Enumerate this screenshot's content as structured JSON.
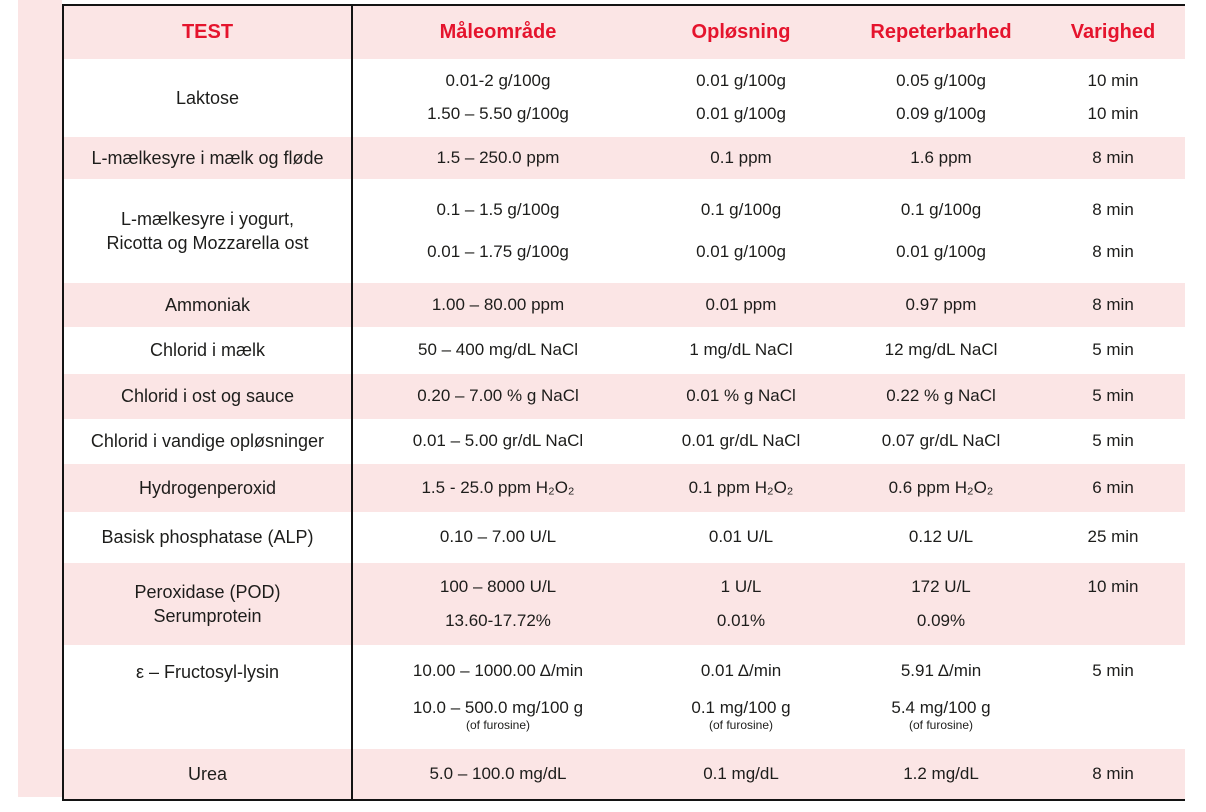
{
  "colors": {
    "accent_red": "#E5142D",
    "band_pink": "#FBE5E5",
    "text_black": "#1D1D1B",
    "rule_black": "#131313"
  },
  "table": {
    "headers": {
      "test": "TEST",
      "range": "Måleområde",
      "resolution": "Opløsning",
      "repeatability": "Repeterbarhed",
      "duration": "Varighed"
    },
    "rows": [
      {
        "test": [
          "Laktose"
        ],
        "lines": [
          {
            "cells": [
              {
                "t": "0.01-2 g/100g"
              },
              {
                "t": "0.01 g/100g"
              },
              {
                "t": "0.05 g/100g"
              },
              {
                "t": "10 min"
              }
            ]
          },
          {
            "cells": [
              {
                "t": "1.50 – 5.50 g/100g"
              },
              {
                "t": "0.01 g/100g"
              },
              {
                "t": "0.09 g/100g"
              },
              {
                "t": "10 min"
              }
            ]
          }
        ]
      },
      {
        "test": [
          "L-mælkesyre i mælk og fløde"
        ],
        "lines": [
          {
            "cells": [
              {
                "t": "1.5 – 250.0 ppm"
              },
              {
                "t": "0.1 ppm"
              },
              {
                "t": "1.6 ppm"
              },
              {
                "t": "8 min"
              }
            ]
          }
        ]
      },
      {
        "test": [
          "L-mælkesyre i yogurt,",
          "Ricotta og Mozzarella ost"
        ],
        "lines": [
          {
            "cells": [
              {
                "t": "0.1 – 1.5 g/100g"
              },
              {
                "t": "0.1 g/100g"
              },
              {
                "t": "0.1 g/100g"
              },
              {
                "t": "8 min"
              }
            ]
          },
          {
            "cells": [
              {
                "t": "0.01 – 1.75 g/100g"
              },
              {
                "t": "0.01 g/100g"
              },
              {
                "t": "0.01 g/100g"
              },
              {
                "t": "8 min"
              }
            ]
          }
        ]
      },
      {
        "test": [
          "Ammoniak"
        ],
        "lines": [
          {
            "cells": [
              {
                "t": "1.00 – 80.00 ppm"
              },
              {
                "t": "0.01 ppm"
              },
              {
                "t": "0.97 ppm"
              },
              {
                "t": "8 min"
              }
            ]
          }
        ]
      },
      {
        "test": [
          "Chlorid i mælk"
        ],
        "lines": [
          {
            "cells": [
              {
                "t": "50 – 400 mg/dL NaCl"
              },
              {
                "t": "1 mg/dL NaCl"
              },
              {
                "t": "12 mg/dL NaCl"
              },
              {
                "t": "5 min"
              }
            ]
          }
        ]
      },
      {
        "test": [
          "Chlorid i ost og sauce"
        ],
        "lines": [
          {
            "cells": [
              {
                "t": "0.20 – 7.00 % g NaCl"
              },
              {
                "t": "0.01 % g NaCl"
              },
              {
                "t": "0.22 % g NaCl"
              },
              {
                "t": "5 min"
              }
            ]
          }
        ]
      },
      {
        "test": [
          "Chlorid i vandige opløsninger"
        ],
        "lines": [
          {
            "cells": [
              {
                "t": "0.01 – 5.00 gr/dL NaCl"
              },
              {
                "t": "0.01 gr/dL NaCl"
              },
              {
                "t": "0.07 gr/dL NaCl"
              },
              {
                "t": "5 min"
              }
            ]
          }
        ]
      },
      {
        "test": [
          "Hydrogenperoxid"
        ],
        "lines": [
          {
            "cells": [
              {
                "t": "1.5 - 25.0 ppm H₂O₂"
              },
              {
                "t": "0.1 ppm H₂O₂"
              },
              {
                "t": "0.6 ppm H₂O₂"
              },
              {
                "t": "6 min"
              }
            ]
          }
        ]
      },
      {
        "test": [
          "Basisk phosphatase (ALP)"
        ],
        "lines": [
          {
            "cells": [
              {
                "t": "0.10 – 7.00 U/L"
              },
              {
                "t": "0.01 U/L"
              },
              {
                "t": "0.12 U/L"
              },
              {
                "t": "25 min"
              }
            ]
          }
        ]
      },
      {
        "test": [
          "Peroxidase (POD)",
          "Serumprotein"
        ],
        "lines": [
          {
            "cells": [
              {
                "t": "100 – 8000 U/L"
              },
              {
                "t": "1 U/L"
              },
              {
                "t": "172 U/L"
              },
              {
                "t": "10 min"
              }
            ]
          },
          {
            "cells": [
              {
                "t": "13.60-17.72%"
              },
              {
                "t": "0.01%"
              },
              {
                "t": "0.09%"
              },
              {
                "t": ""
              }
            ]
          }
        ]
      },
      {
        "test": [
          "ε – Fructosyl-lysin"
        ],
        "lines": [
          {
            "cells": [
              {
                "t": "10.00 – 1000.00 Δ/min"
              },
              {
                "t": "0.01 Δ/min"
              },
              {
                "t": "5.91 Δ/min"
              },
              {
                "t": "5 min"
              }
            ]
          },
          {
            "cells": [
              {
                "t": "10.0 – 500.0 mg/100 g",
                "n": "(of furosine)"
              },
              {
                "t": "0.1 mg/100 g",
                "n": "(of furosine)"
              },
              {
                "t": "5.4 mg/100 g",
                "n": "(of furosine)"
              },
              {
                "t": ""
              }
            ]
          }
        ]
      },
      {
        "test": [
          "Urea"
        ],
        "lines": [
          {
            "cells": [
              {
                "t": "5.0 – 100.0 mg/dL"
              },
              {
                "t": "0.1 mg/dL"
              },
              {
                "t": "1.2 mg/dL"
              },
              {
                "t": "8 min"
              }
            ]
          }
        ]
      }
    ]
  }
}
